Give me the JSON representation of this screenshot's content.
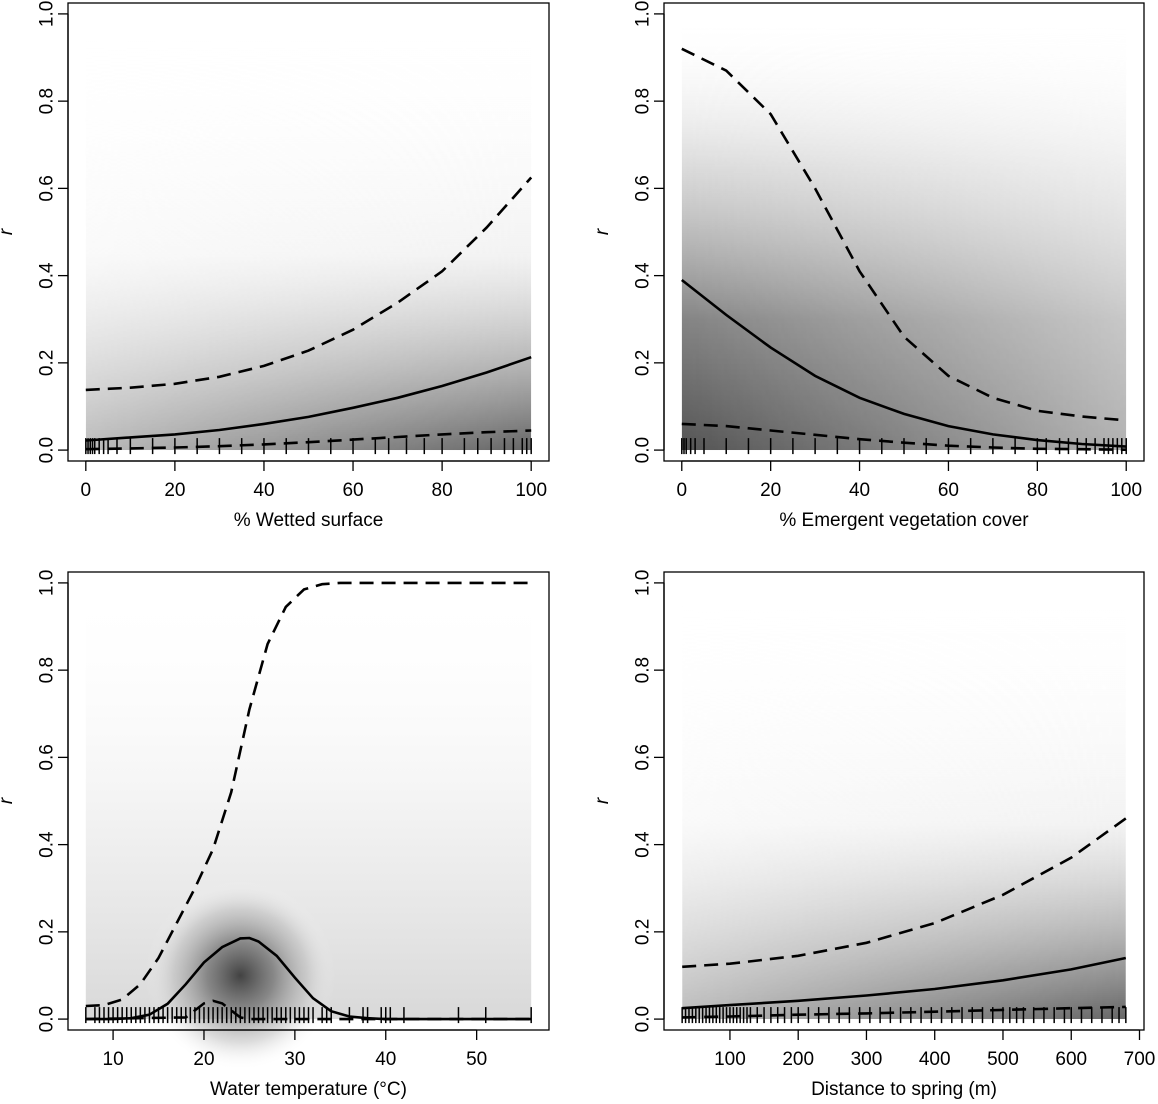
{
  "chart_data": [
    {
      "type": "line",
      "xlabel": "% Wetted surface",
      "ylabel": "r",
      "xlim": [
        -4,
        104
      ],
      "ylim": [
        -0.025,
        1.025
      ],
      "xticks": [
        0,
        20,
        40,
        60,
        80,
        100
      ],
      "yticks": [
        0.0,
        0.2,
        0.4,
        0.6,
        0.8,
        1.0
      ],
      "band": {
        "x_range": [
          0,
          100
        ],
        "type": "increasing"
      },
      "series": [
        {
          "role": "mean",
          "x": [
            0,
            10,
            20,
            30,
            40,
            50,
            60,
            70,
            80,
            90,
            100
          ],
          "y": [
            0.022,
            0.029,
            0.036,
            0.046,
            0.06,
            0.076,
            0.097,
            0.12,
            0.147,
            0.178,
            0.213
          ]
        },
        {
          "role": "upper",
          "x": [
            0,
            10,
            20,
            30,
            40,
            50,
            60,
            70,
            80,
            90,
            100
          ],
          "y": [
            0.138,
            0.143,
            0.152,
            0.168,
            0.193,
            0.228,
            0.276,
            0.338,
            0.41,
            0.51,
            0.625
          ]
        },
        {
          "role": "lower",
          "x": [
            0,
            10,
            20,
            30,
            40,
            50,
            60,
            70,
            80,
            90,
            100
          ],
          "y": [
            0.002,
            0.004,
            0.006,
            0.009,
            0.013,
            0.018,
            0.024,
            0.03,
            0.036,
            0.041,
            0.045
          ]
        }
      ],
      "rug": [
        0,
        0.5,
        1,
        1.5,
        2,
        3,
        4,
        5,
        7,
        10,
        15,
        20,
        25,
        30,
        35,
        40,
        45,
        50,
        55,
        60,
        65,
        68,
        72,
        76,
        80,
        85,
        88,
        91,
        94,
        96,
        98,
        99,
        100
      ]
    },
    {
      "type": "line",
      "xlabel": "% Emergent vegetation cover",
      "ylabel": "r",
      "xlim": [
        -4,
        104
      ],
      "ylim": [
        -0.025,
        1.025
      ],
      "xticks": [
        0,
        20,
        40,
        60,
        80,
        100
      ],
      "yticks": [
        0.0,
        0.2,
        0.4,
        0.6,
        0.8,
        1.0
      ],
      "band": {
        "x_range": [
          0,
          100
        ],
        "type": "decreasing"
      },
      "series": [
        {
          "role": "mean",
          "x": [
            0,
            10,
            20,
            30,
            40,
            50,
            60,
            70,
            80,
            90,
            100
          ],
          "y": [
            0.39,
            0.31,
            0.235,
            0.17,
            0.12,
            0.083,
            0.055,
            0.036,
            0.023,
            0.014,
            0.008
          ]
        },
        {
          "role": "upper",
          "x": [
            0,
            10,
            20,
            30,
            40,
            50,
            60,
            70,
            80,
            90,
            100
          ],
          "y": [
            0.92,
            0.87,
            0.77,
            0.6,
            0.41,
            0.26,
            0.17,
            0.12,
            0.09,
            0.077,
            0.068
          ]
        },
        {
          "role": "lower",
          "x": [
            0,
            10,
            20,
            30,
            40,
            50,
            60,
            70,
            80,
            90,
            100
          ],
          "y": [
            0.06,
            0.055,
            0.045,
            0.035,
            0.025,
            0.017,
            0.01,
            0.006,
            0.003,
            0.002,
            0.001
          ]
        }
      ],
      "rug": [
        0,
        0.5,
        1,
        2,
        3,
        5,
        10,
        15,
        20,
        25,
        30,
        35,
        40,
        45,
        50,
        55,
        60,
        65,
        70,
        75,
        80,
        82,
        85,
        87,
        89,
        91,
        93,
        95,
        96,
        97,
        98,
        99,
        100
      ]
    },
    {
      "type": "line",
      "xlabel": "Water temperature (°C)",
      "ylabel": "r",
      "xlim": [
        5.04,
        57.96
      ],
      "ylim": [
        -0.025,
        1.025
      ],
      "xticks": [
        10,
        20,
        30,
        40,
        50
      ],
      "yticks": [
        0.0,
        0.2,
        0.4,
        0.6,
        0.8,
        1.0
      ],
      "band": {
        "x_range": [
          7,
          56
        ],
        "type": "peak"
      },
      "series": [
        {
          "role": "mean",
          "x": [
            7,
            10,
            12,
            14,
            16,
            18,
            20,
            22,
            24,
            25,
            26,
            28,
            30,
            32,
            34,
            36,
            38,
            40,
            45,
            50,
            56
          ],
          "y": [
            0.0,
            0.0,
            0.002,
            0.01,
            0.035,
            0.08,
            0.13,
            0.165,
            0.185,
            0.186,
            0.178,
            0.145,
            0.095,
            0.048,
            0.018,
            0.006,
            0.002,
            0.0,
            0.0,
            0.0,
            0.0
          ]
        },
        {
          "role": "upper",
          "x": [
            7,
            9,
            11,
            13,
            15,
            17,
            19,
            21,
            23,
            25,
            27,
            29,
            31,
            33,
            35,
            40,
            45,
            50,
            56
          ],
          "y": [
            0.03,
            0.032,
            0.045,
            0.08,
            0.14,
            0.22,
            0.3,
            0.39,
            0.52,
            0.71,
            0.86,
            0.945,
            0.985,
            0.997,
            1.0,
            1.0,
            1.0,
            1.0,
            1.0
          ]
        },
        {
          "role": "lower",
          "x": [
            7,
            18,
            19,
            20,
            21,
            22,
            23,
            24,
            25,
            30,
            40,
            56
          ],
          "y": [
            0.0,
            0.004,
            0.02,
            0.036,
            0.042,
            0.036,
            0.02,
            0.004,
            0.0,
            0.0,
            0.0,
            0.0
          ]
        }
      ],
      "rug": [
        7,
        8,
        8.5,
        9,
        9.5,
        10,
        10.5,
        11,
        11.5,
        12,
        12.5,
        13,
        13.5,
        14,
        14.5,
        15,
        15.5,
        16,
        16.5,
        17,
        17.5,
        18,
        18.5,
        19,
        19.5,
        20,
        20.5,
        21,
        21.5,
        22,
        22.5,
        23,
        23.5,
        24,
        24.5,
        25,
        25.5,
        26,
        26.5,
        27,
        27.5,
        28,
        28.5,
        29,
        29.5,
        30,
        30.5,
        31,
        31.5,
        32,
        33,
        33.5,
        34,
        36,
        37.5,
        38,
        39.5,
        40,
        40.5,
        42,
        48,
        51,
        56
      ]
    },
    {
      "type": "line",
      "xlabel": "Distance to spring (m)",
      "ylabel": "r",
      "xlim": [
        3.4,
        706.6
      ],
      "ylim": [
        -0.025,
        1.025
      ],
      "xticks": [
        100,
        200,
        300,
        400,
        500,
        600,
        700
      ],
      "yticks": [
        0.0,
        0.2,
        0.4,
        0.6,
        0.8,
        1.0
      ],
      "band": {
        "x_range": [
          30,
          680
        ],
        "type": "increasing"
      },
      "series": [
        {
          "role": "mean",
          "x": [
            30,
            100,
            200,
            300,
            400,
            500,
            600,
            680
          ],
          "y": [
            0.025,
            0.032,
            0.042,
            0.054,
            0.069,
            0.089,
            0.114,
            0.14
          ]
        },
        {
          "role": "upper",
          "x": [
            30,
            100,
            200,
            300,
            400,
            500,
            600,
            680
          ],
          "y": [
            0.12,
            0.127,
            0.145,
            0.175,
            0.22,
            0.285,
            0.37,
            0.46
          ]
        },
        {
          "role": "lower",
          "x": [
            30,
            100,
            200,
            300,
            400,
            500,
            600,
            680
          ],
          "y": [
            0.004,
            0.006,
            0.01,
            0.013,
            0.017,
            0.021,
            0.025,
            0.028
          ]
        }
      ],
      "rug": [
        30,
        35,
        40,
        45,
        50,
        55,
        60,
        65,
        70,
        75,
        80,
        85,
        90,
        95,
        100,
        105,
        110,
        115,
        120,
        125,
        130,
        140,
        150,
        160,
        170,
        180,
        190,
        200,
        215,
        230,
        245,
        260,
        275,
        290,
        305,
        320,
        335,
        350,
        365,
        380,
        395,
        410,
        425,
        440,
        455,
        470,
        485,
        500,
        510,
        520,
        530,
        545,
        560,
        575,
        590,
        600,
        615,
        630,
        645,
        660,
        670,
        680
      ]
    }
  ]
}
